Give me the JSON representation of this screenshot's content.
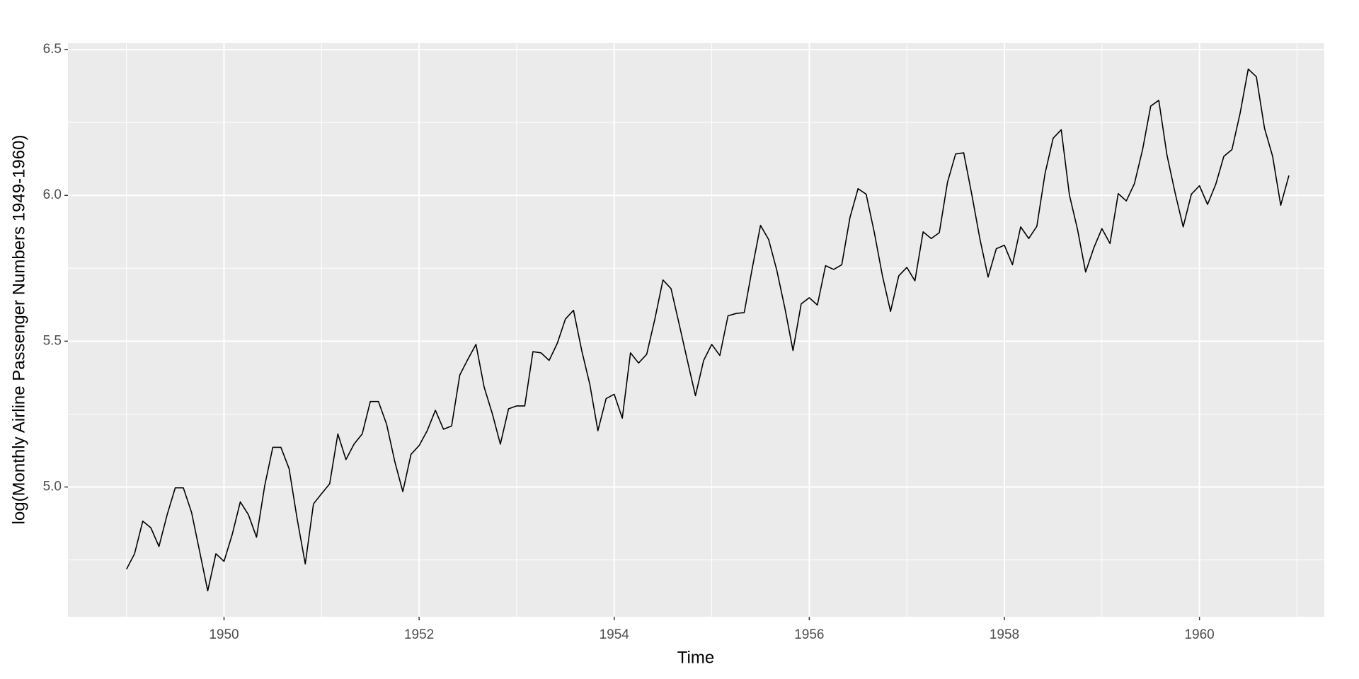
{
  "chart_data": {
    "type": "line",
    "x_label": "Time",
    "y_label": "log(Monthly Airline Passenger Numbers 1949-1960)",
    "x": [
      1949,
      1949.083,
      1949.167,
      1949.25,
      1949.333,
      1949.417,
      1949.5,
      1949.583,
      1949.667,
      1949.75,
      1949.833,
      1949.917,
      1950,
      1950.083,
      1950.167,
      1950.25,
      1950.333,
      1950.417,
      1950.5,
      1950.583,
      1950.667,
      1950.75,
      1950.833,
      1950.917,
      1951,
      1951.083,
      1951.167,
      1951.25,
      1951.333,
      1951.417,
      1951.5,
      1951.583,
      1951.667,
      1951.75,
      1951.833,
      1951.917,
      1952,
      1952.083,
      1952.167,
      1952.25,
      1952.333,
      1952.417,
      1952.5,
      1952.583,
      1952.667,
      1952.75,
      1952.833,
      1952.917,
      1953,
      1953.083,
      1953.167,
      1953.25,
      1953.333,
      1953.417,
      1953.5,
      1953.583,
      1953.667,
      1953.75,
      1953.833,
      1953.917,
      1954,
      1954.083,
      1954.167,
      1954.25,
      1954.333,
      1954.417,
      1954.5,
      1954.583,
      1954.667,
      1954.75,
      1954.833,
      1954.917,
      1955,
      1955.083,
      1955.167,
      1955.25,
      1955.333,
      1955.417,
      1955.5,
      1955.583,
      1955.667,
      1955.75,
      1955.833,
      1955.917,
      1956,
      1956.083,
      1956.167,
      1956.25,
      1956.333,
      1956.417,
      1956.5,
      1956.583,
      1956.667,
      1956.75,
      1956.833,
      1956.917,
      1957,
      1957.083,
      1957.167,
      1957.25,
      1957.333,
      1957.417,
      1957.5,
      1957.583,
      1957.667,
      1957.75,
      1957.833,
      1957.917,
      1958,
      1958.083,
      1958.167,
      1958.25,
      1958.333,
      1958.417,
      1958.5,
      1958.583,
      1958.667,
      1958.75,
      1958.833,
      1958.917,
      1959,
      1959.083,
      1959.167,
      1959.25,
      1959.333,
      1959.417,
      1959.5,
      1959.583,
      1959.667,
      1959.75,
      1959.833,
      1959.917,
      1960,
      1960.083,
      1960.167,
      1960.25,
      1960.333,
      1960.417,
      1960.5,
      1960.583,
      1960.667,
      1960.75,
      1960.833,
      1960.917
    ],
    "values": [
      4.718,
      4.771,
      4.883,
      4.86,
      4.796,
      4.905,
      4.997,
      4.997,
      4.913,
      4.779,
      4.644,
      4.771,
      4.745,
      4.836,
      4.949,
      4.905,
      4.828,
      5.004,
      5.136,
      5.136,
      5.063,
      4.89,
      4.736,
      4.942,
      4.977,
      5.011,
      5.182,
      5.094,
      5.147,
      5.182,
      5.293,
      5.293,
      5.215,
      5.088,
      4.984,
      5.112,
      5.142,
      5.193,
      5.263,
      5.198,
      5.209,
      5.384,
      5.438,
      5.489,
      5.342,
      5.252,
      5.147,
      5.268,
      5.278,
      5.278,
      5.464,
      5.46,
      5.434,
      5.493,
      5.576,
      5.606,
      5.468,
      5.352,
      5.193,
      5.303,
      5.318,
      5.236,
      5.46,
      5.425,
      5.455,
      5.576,
      5.71,
      5.68,
      5.557,
      5.434,
      5.313,
      5.434,
      5.489,
      5.451,
      5.587,
      5.595,
      5.598,
      5.753,
      5.897,
      5.849,
      5.743,
      5.613,
      5.468,
      5.628,
      5.649,
      5.624,
      5.759,
      5.746,
      5.762,
      5.924,
      6.023,
      6.004,
      5.872,
      5.724,
      5.602,
      5.724,
      5.753,
      5.707,
      5.875,
      5.852,
      5.872,
      6.045,
      6.142,
      6.146,
      6.001,
      5.849,
      5.72,
      5.817,
      5.829,
      5.762,
      5.892,
      5.852,
      5.894,
      6.075,
      6.196,
      6.225,
      6.001,
      5.883,
      5.737,
      5.82,
      5.886,
      5.835,
      6.006,
      5.981,
      6.04,
      6.157,
      6.306,
      6.326,
      6.138,
      6.009,
      5.892,
      6.004,
      6.033,
      5.969,
      6.038,
      6.134,
      6.157,
      6.282,
      6.433,
      6.407,
      6.23,
      6.134,
      5.966,
      6.068
    ],
    "color": "#000000",
    "xlim": [
      1948.4,
      1961.28
    ],
    "ylim": [
      4.555,
      6.522
    ],
    "xticks": [
      1950,
      1952,
      1954,
      1956,
      1958,
      1960
    ],
    "xminorticks": [
      1949,
      1951,
      1953,
      1955,
      1957,
      1959,
      1961
    ],
    "yticks": [
      {
        "value": 5,
        "label": "5.0"
      },
      5.5,
      {
        "value": 6,
        "label": "6.0"
      },
      6.5
    ],
    "yminorticks": [
      4.75,
      5.25,
      5.75,
      6.25
    ],
    "grid": true
  }
}
